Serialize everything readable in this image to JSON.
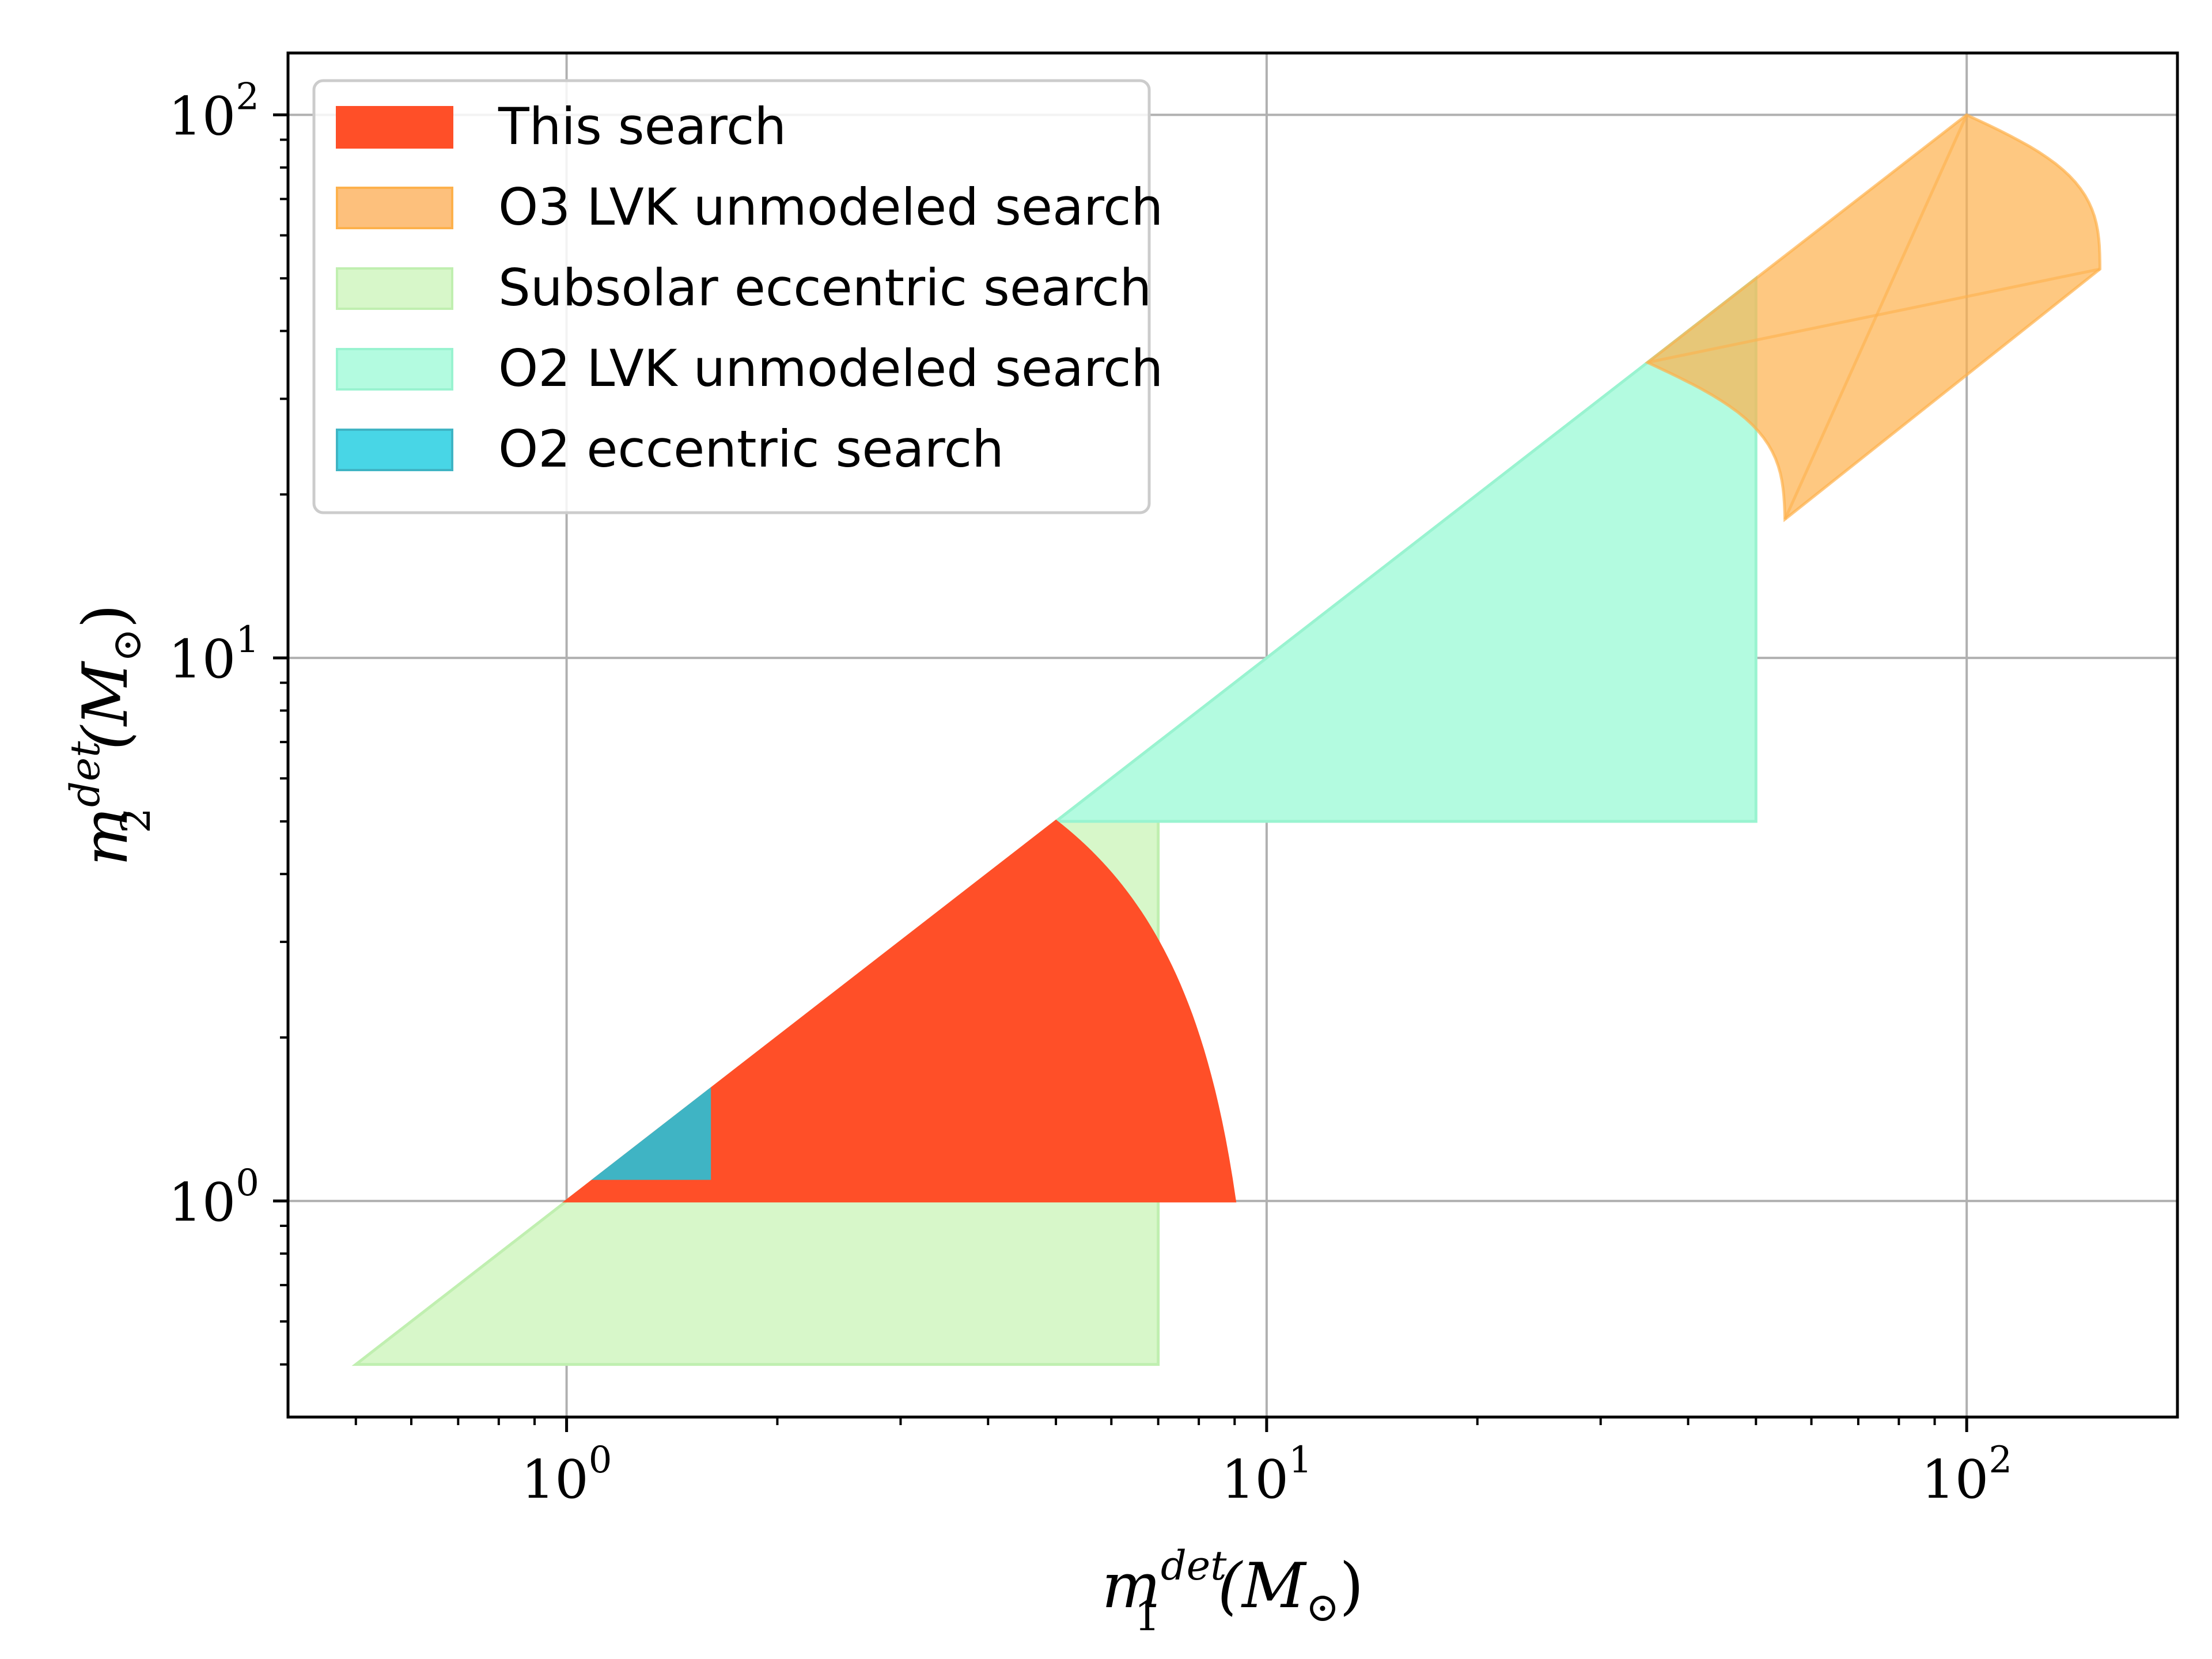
{
  "chart_data": {
    "type": "area",
    "xscale": "log",
    "yscale": "log",
    "xlim": [
      0.4,
      200
    ],
    "ylim": [
      0.4,
      130
    ],
    "grid": true,
    "legend_position": "top-left",
    "xlabel": {
      "main": "m",
      "sup": "det",
      "sub": "1",
      "unit": "(M",
      "unit_sub": "⊙",
      "unit_close": ")"
    },
    "ylabel": {
      "main": "m",
      "sup": "det",
      "sub": "2",
      "unit": "(M",
      "unit_sub": "⊙",
      "unit_close": ")"
    },
    "x_ticks": [
      {
        "base": "10",
        "exp": "0",
        "value": 1
      },
      {
        "base": "10",
        "exp": "1",
        "value": 10
      },
      {
        "base": "10",
        "exp": "2",
        "value": 100
      }
    ],
    "y_ticks": [
      {
        "base": "10",
        "exp": "0",
        "value": 1
      },
      {
        "base": "10",
        "exp": "1",
        "value": 10
      },
      {
        "base": "10",
        "exp": "2",
        "value": 100
      }
    ],
    "series": [
      {
        "name": "Subsolar eccentric search",
        "color": "#d7f7c9",
        "edge": "#c0efb0",
        "opacity": 1,
        "region": {
          "kind": "triangle",
          "x_min": 0.5,
          "x_max": 7,
          "y_min": 0.5
        }
      },
      {
        "name": "O2 LVK unmodeled search",
        "color": "#b3fbe0",
        "edge": "#99f3d0",
        "opacity": 1,
        "region": {
          "kind": "triangle",
          "x_min": 5,
          "x_max": 50,
          "y_min": 5
        }
      },
      {
        "name": "O3 LVK unmodeled search",
        "color": "#fdb14c",
        "edge": "#fdb14c",
        "opacity": 0.7,
        "region": {
          "kind": "mass_ratio_band",
          "q_min": 1,
          "q_max": 3,
          "m1_at_q1": [
            35,
            100
          ],
          "tip_high": [
            155,
            52
          ],
          "tip_low": [
            55,
            18
          ]
        }
      },
      {
        "name": "This search",
        "color": "#ff4f28",
        "edge": "#ff4f28",
        "opacity": 1,
        "region": {
          "kind": "total_mass",
          "x_min": 1,
          "y_min": 1,
          "m_total_max": 10
        }
      },
      {
        "name": "O2 eccentric search",
        "color": "#3fb4c4",
        "edge": "#3fb4c4",
        "opacity": 1,
        "region": {
          "kind": "triangle",
          "x_min": 1.1,
          "x_max": 1.6,
          "y_min": 1.1
        }
      }
    ],
    "legend_order": [
      "This search",
      "O3 LVK unmodeled search",
      "Subsolar eccentric search",
      "O2 LVK unmodeled search",
      "O2 eccentric search"
    ],
    "legend_swatch_colors": [
      "#ff4f28",
      "#fdc07c",
      "#d7f7c9",
      "#b3fbe0",
      "#48d6e6"
    ]
  }
}
